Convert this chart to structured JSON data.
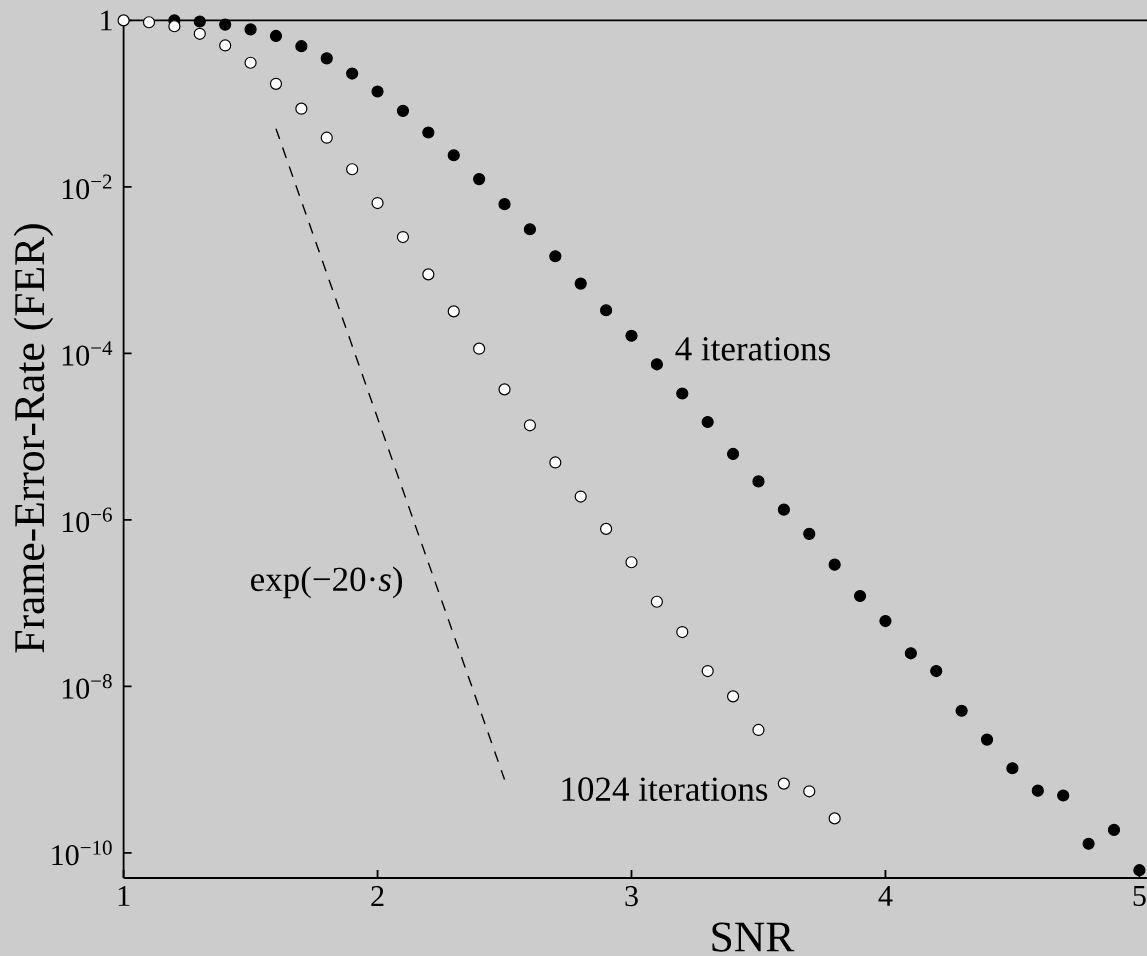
{
  "chart_data": {
    "type": "scatter",
    "xlabel": "SNR",
    "ylabel": "Frame-Error-Rate (FER)",
    "log": "y",
    "marker": "circle",
    "xlim": [
      1,
      5.03
    ],
    "ylim": [
      5e-11,
      1
    ],
    "xticks": [
      1,
      2,
      3,
      4,
      5
    ],
    "yticks": [
      1,
      {
        "value": 0.01,
        "label": "10$^{−2}$"
      },
      {
        "value": 0.0001,
        "label": "10$^{−4}$"
      },
      {
        "value": 1e-06,
        "label": "10$^{−6}$"
      },
      {
        "value": 1e-08,
        "label": "10$^{−8}$"
      },
      {
        "value": 1e-10,
        "label": "10$^{−10}$"
      }
    ],
    "series": [
      {
        "name": "4 iterations",
        "color": "#000000",
        "x": [
          1.2,
          1.3,
          1.4,
          1.5,
          1.6,
          1.7,
          1.8,
          1.9,
          2.0,
          2.1,
          2.2,
          2.3,
          2.4,
          2.5,
          2.6,
          2.7,
          2.8,
          2.9,
          3.0,
          3.1,
          3.2,
          3.3,
          3.4,
          3.5,
          3.6,
          3.7,
          3.8,
          3.9,
          4.0,
          4.1,
          4.2,
          4.3,
          4.4,
          4.5,
          4.6,
          4.7,
          4.8,
          4.9,
          5.0
        ],
        "values": [
          1,
          0.97,
          0.89,
          0.78,
          0.65,
          0.49,
          0.35,
          0.23,
          0.14,
          0.082,
          0.045,
          0.024,
          0.0124,
          0.0062,
          0.0031,
          0.00147,
          0.00069,
          0.00033,
          0.000163,
          7.4e-05,
          3.3e-05,
          1.5e-05,
          6.2e-06,
          2.9e-06,
          1.33e-06,
          6.8e-07,
          2.9e-07,
          1.22e-07,
          6.1e-08,
          2.5e-08,
          1.53e-08,
          5.1e-09,
          2.3e-09,
          1.04e-09,
          5.6e-10,
          4.9e-10,
          1.29e-10,
          1.89e-10,
          6.2e-11
        ]
      },
      {
        "name": "1024 iterations",
        "color": "#ffffff",
        "x": [
          1.0,
          1.1,
          1.2,
          1.3,
          1.4,
          1.5,
          1.6,
          1.7,
          1.8,
          1.9,
          2.0,
          2.1,
          2.2,
          2.3,
          2.4,
          2.5,
          2.6,
          2.7,
          2.8,
          2.9,
          3.0,
          3.1,
          3.2,
          3.3,
          3.4,
          3.5,
          3.6,
          3.7,
          3.8
        ],
        "values": [
          1,
          0.95,
          0.85,
          0.69,
          0.5,
          0.31,
          0.173,
          0.087,
          0.039,
          0.0163,
          0.0064,
          0.0025,
          0.00089,
          0.00032,
          0.000114,
          3.7e-05,
          1.37e-05,
          4.9e-06,
          1.91e-06,
          7.8e-07,
          3.1e-07,
          1.04e-07,
          4.5e-08,
          1.53e-08,
          7.6e-09,
          3e-09,
          6.8e-10,
          5.5e-10,
          2.6e-10
        ]
      },
      {
        "name": "exp(−20·*s*)",
        "type": "line",
        "line_style": "dashed",
        "marker": "none",
        "color": "#000000",
        "x": [
          1.6,
          2.5
        ],
        "values": [
          0.05,
          7.6e-10
        ]
      }
    ]
  }
}
